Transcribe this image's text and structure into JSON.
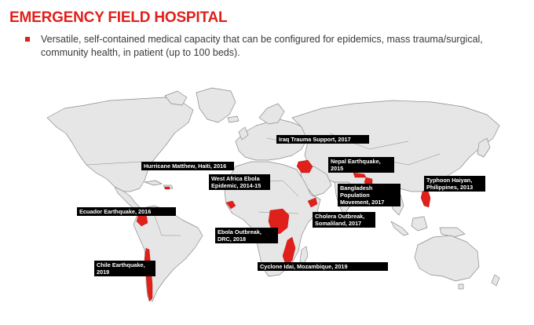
{
  "header": {
    "title": "EMERGENCY FIELD HOSPITAL",
    "bullet": "Versatile, self-contained medical capacity that can be configured for epidemics, mass trauma/surgical, community health, in patient (up to 100 beds)."
  },
  "colors": {
    "accent": "#e0201b",
    "land": "#e6e6e6",
    "border": "#8a8a8a",
    "label_bg": "#000000",
    "label_text": "#ffffff"
  },
  "deployments": [
    {
      "id": "iraq",
      "label": "Iraq Trauma Support, 2017"
    },
    {
      "id": "haiti",
      "label": "Hurricane Matthew, Haiti, 2016"
    },
    {
      "id": "nepal",
      "label": "Nepal Earthquake, 2015"
    },
    {
      "id": "west-africa",
      "label": "West Africa Ebola Epidemic, 2014-15"
    },
    {
      "id": "philippines",
      "label": "Typhoon Haiyan, Philippines, 2013"
    },
    {
      "id": "bangladesh",
      "label": "Bangladesh Population Movement, 2017"
    },
    {
      "id": "ecuador",
      "label": "Ecuador Earthquake, 2016"
    },
    {
      "id": "somaliland",
      "label": "Cholera Outbreak, Somaliland, 2017"
    },
    {
      "id": "drc",
      "label": "Ebola Outbreak, DRC, 2018"
    },
    {
      "id": "chile",
      "label": "Chile Earthquake, 2019"
    },
    {
      "id": "mozambique",
      "label": "Cyclone Idai, Mozambique, 2019"
    }
  ]
}
